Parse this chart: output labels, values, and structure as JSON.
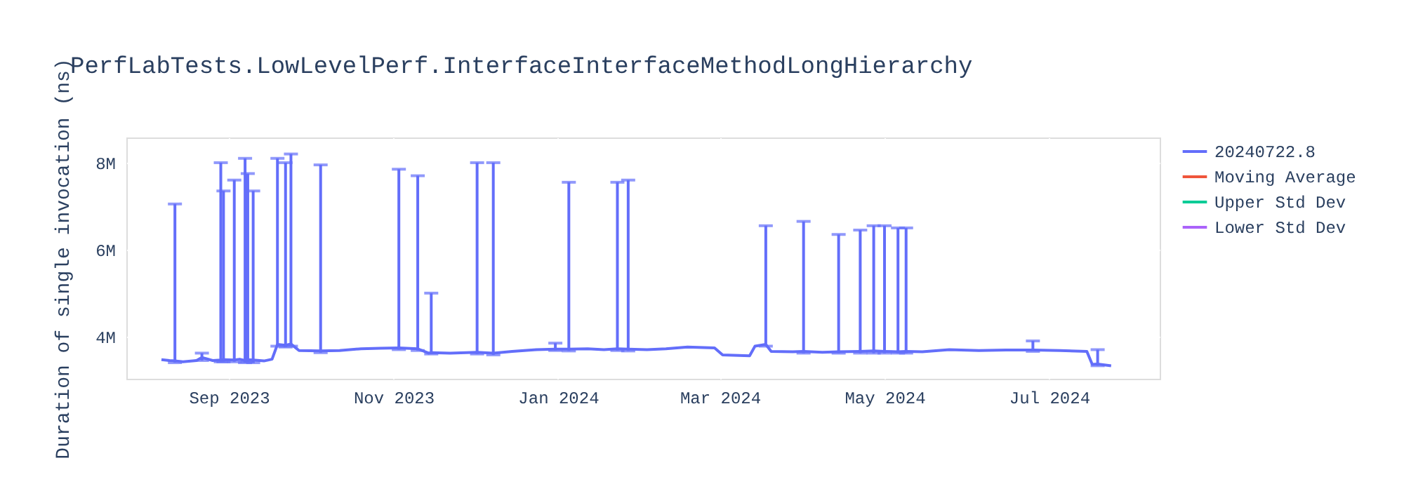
{
  "chart_data": {
    "type": "line",
    "title": "PerfLabTests.LowLevelPerf.InterfaceInterfaceMethodLongHierarchy",
    "ylabel": "Duration of single invocation (ns)",
    "x": [
      "2023-08-07",
      "2023-08-10",
      "2023-08-12",
      "2023-08-15",
      "2023-08-20",
      "2023-08-22",
      "2023-08-26",
      "2023-08-29",
      "2023-08-30",
      "2023-09-03",
      "2023-09-05",
      "2023-09-07",
      "2023-09-08",
      "2023-09-10",
      "2023-09-14",
      "2023-09-17",
      "2023-09-19",
      "2023-09-22",
      "2023-09-24",
      "2023-09-27",
      "2023-10-05",
      "2023-10-12",
      "2023-10-20",
      "2023-10-27",
      "2023-11-03",
      "2023-11-10",
      "2023-11-14",
      "2023-11-15",
      "2023-11-22",
      "2023-12-02",
      "2023-12-08",
      "2023-12-15",
      "2023-12-24",
      "2023-12-31",
      "2024-01-05",
      "2024-01-12",
      "2024-01-18",
      "2024-01-23",
      "2024-01-27",
      "2024-02-03",
      "2024-02-10",
      "2024-02-18",
      "2024-02-28",
      "2024-03-02",
      "2024-03-12",
      "2024-03-14",
      "2024-03-18",
      "2024-03-20",
      "2024-03-28",
      "2024-04-01",
      "2024-04-08",
      "2024-04-14",
      "2024-04-22",
      "2024-04-27",
      "2024-05-01",
      "2024-05-06",
      "2024-05-09",
      "2024-05-15",
      "2024-05-25",
      "2024-06-05",
      "2024-06-15",
      "2024-06-25",
      "2024-07-05",
      "2024-07-15",
      "2024-07-17",
      "2024-07-19",
      "2024-07-24"
    ],
    "series": [
      {
        "name": "20240722.8",
        "color": "#636efa",
        "values": [
          3470000,
          3450000,
          3440000,
          3420000,
          3450000,
          3520000,
          3450000,
          3460000,
          3470000,
          3460000,
          3480000,
          3450000,
          3470000,
          3460000,
          3440000,
          3480000,
          3820000,
          3800000,
          3830000,
          3680000,
          3670000,
          3680000,
          3720000,
          3730000,
          3740000,
          3720000,
          3620000,
          3630000,
          3620000,
          3640000,
          3620000,
          3660000,
          3700000,
          3710000,
          3710000,
          3720000,
          3700000,
          3720000,
          3710000,
          3700000,
          3720000,
          3760000,
          3740000,
          3580000,
          3560000,
          3780000,
          3820000,
          3660000,
          3650000,
          3660000,
          3640000,
          3650000,
          3660000,
          3670000,
          3660000,
          3650000,
          3660000,
          3650000,
          3700000,
          3680000,
          3690000,
          3690000,
          3680000,
          3660000,
          3360000,
          3370000,
          3330000
        ],
        "errors": [
          null,
          null,
          [
            3400000,
            7050000
          ],
          null,
          null,
          [
            3450000,
            3620000
          ],
          null,
          [
            3420000,
            8000000
          ],
          [
            3420000,
            7350000
          ],
          [
            3420000,
            7600000
          ],
          null,
          [
            3400000,
            8100000
          ],
          [
            3420000,
            7750000
          ],
          [
            3400000,
            7350000
          ],
          null,
          null,
          [
            3780000,
            8100000
          ],
          [
            3760000,
            8000000
          ],
          [
            3780000,
            8200000
          ],
          null,
          [
            3630000,
            7950000
          ],
          null,
          null,
          null,
          [
            3700000,
            7850000
          ],
          [
            3680000,
            7700000
          ],
          null,
          [
            3600000,
            5000000
          ],
          null,
          [
            3600000,
            8000000
          ],
          [
            3580000,
            8000000
          ],
          null,
          null,
          [
            3680000,
            3850000
          ],
          [
            3670000,
            7550000
          ],
          null,
          null,
          [
            3680000,
            7550000
          ],
          [
            3670000,
            7600000
          ],
          null,
          null,
          null,
          null,
          null,
          null,
          null,
          [
            3780000,
            6550000
          ],
          null,
          null,
          [
            3620000,
            6650000
          ],
          null,
          [
            3620000,
            6350000
          ],
          [
            3620000,
            6450000
          ],
          [
            3620000,
            6550000
          ],
          [
            3620000,
            6550000
          ],
          [
            3620000,
            6500000
          ],
          [
            3620000,
            6500000
          ],
          null,
          null,
          null,
          null,
          [
            3660000,
            3900000
          ],
          null,
          null,
          null,
          [
            3330000,
            3700000
          ],
          null
        ]
      },
      {
        "name": "Moving Average",
        "color": "#ef553b",
        "values": [
          null,
          null,
          null,
          null,
          null,
          null,
          null,
          null,
          null,
          null,
          null,
          null,
          null,
          null,
          null,
          null,
          null,
          null,
          null,
          null,
          null,
          null,
          null,
          null,
          null,
          null,
          null,
          null,
          null,
          null,
          null,
          null,
          null,
          null,
          null,
          null,
          null,
          null,
          null,
          null,
          null,
          null,
          null,
          null,
          null,
          null,
          null,
          null,
          null,
          null,
          null,
          null,
          null,
          null,
          null,
          null,
          null,
          null,
          null,
          null,
          null,
          null,
          null,
          null,
          null,
          null,
          null
        ]
      },
      {
        "name": "Upper Std Dev",
        "color": "#00cc96",
        "values": [
          null,
          null,
          null,
          null,
          null,
          null,
          null,
          null,
          null,
          null,
          null,
          null,
          null,
          null,
          null,
          null,
          null,
          null,
          null,
          null,
          null,
          null,
          null,
          null,
          null,
          null,
          null,
          null,
          null,
          null,
          null,
          null,
          null,
          null,
          null,
          null,
          null,
          null,
          null,
          null,
          null,
          null,
          null,
          null,
          null,
          null,
          null,
          null,
          null,
          null,
          null,
          null,
          null,
          null,
          null,
          null,
          null,
          null,
          null,
          null,
          null,
          null,
          null,
          null,
          null,
          null,
          null
        ]
      },
      {
        "name": "Lower Std Dev",
        "color": "#ab63fa",
        "values": [
          null,
          null,
          null,
          null,
          null,
          null,
          null,
          null,
          null,
          null,
          null,
          null,
          null,
          null,
          null,
          null,
          null,
          null,
          null,
          null,
          null,
          null,
          null,
          null,
          null,
          null,
          null,
          null,
          null,
          null,
          null,
          null,
          null,
          null,
          null,
          null,
          null,
          null,
          null,
          null,
          null,
          null,
          null,
          null,
          null,
          null,
          null,
          null,
          null,
          null,
          null,
          null,
          null,
          null,
          null,
          null,
          null,
          null,
          null,
          null,
          null,
          null,
          null,
          null,
          null,
          null,
          null
        ]
      }
    ],
    "xlim": [
      "2023-07-25",
      "2024-08-11"
    ],
    "xticks": [
      {
        "value": "2023-09-01",
        "label": "Sep 2023"
      },
      {
        "value": "2023-11-01",
        "label": "Nov 2023"
      },
      {
        "value": "2024-01-01",
        "label": "Jan 2024"
      },
      {
        "value": "2024-03-01",
        "label": "Mar 2024"
      },
      {
        "value": "2024-05-01",
        "label": "May 2024"
      },
      {
        "value": "2024-07-01",
        "label": "Jul 2024"
      }
    ],
    "ylim": [
      3030000,
      8580000
    ],
    "yticks": [
      {
        "value": 4000000,
        "label": "4M"
      },
      {
        "value": 6000000,
        "label": "6M"
      },
      {
        "value": 8000000,
        "label": "8M"
      }
    ],
    "grid": true,
    "legend": "top right",
    "line_style": "solid"
  }
}
